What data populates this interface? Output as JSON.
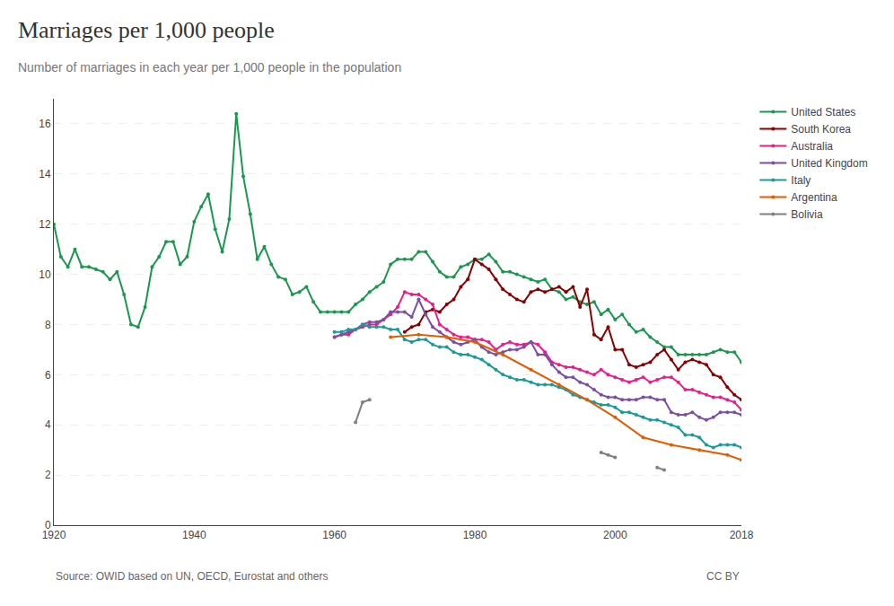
{
  "chart_data": {
    "type": "line",
    "title": "Marriages per 1,000 people",
    "subtitle": "Number of marriages in each year per 1,000 people in the population",
    "annotations": [
      "Source: OWID based on UN, OECD, Eurostat and others",
      "CC BY"
    ],
    "xlim": [
      1920,
      2018
    ],
    "ylim": [
      0,
      17
    ],
    "xticks": [
      1920,
      1940,
      1960,
      1980,
      2000,
      2018
    ],
    "yticks": [
      0,
      2,
      4,
      6,
      8,
      10,
      12,
      14,
      16
    ],
    "grid": "y",
    "marker": "circle",
    "line_style": "solid",
    "series": [
      {
        "name": "United States",
        "color": "#1a9850",
        "x": [
          1920,
          1921,
          1922,
          1923,
          1924,
          1925,
          1926,
          1927,
          1928,
          1929,
          1930,
          1931,
          1932,
          1933,
          1934,
          1935,
          1936,
          1937,
          1938,
          1939,
          1940,
          1941,
          1942,
          1943,
          1944,
          1945,
          1946,
          1947,
          1948,
          1949,
          1950,
          1951,
          1952,
          1953,
          1954,
          1955,
          1956,
          1957,
          1958,
          1959,
          1960,
          1961,
          1962,
          1963,
          1964,
          1965,
          1966,
          1967,
          1968,
          1969,
          1970,
          1971,
          1972,
          1973,
          1974,
          1975,
          1976,
          1977,
          1978,
          1979,
          1980,
          1981,
          1982,
          1983,
          1984,
          1985,
          1986,
          1987,
          1988,
          1989,
          1990,
          1991,
          1992,
          1993,
          1994,
          1995,
          1996,
          1997,
          1998,
          1999,
          2000,
          2001,
          2002,
          2003,
          2004,
          2005,
          2006,
          2007,
          2008,
          2009,
          2010,
          2011,
          2012,
          2013,
          2014,
          2015,
          2016,
          2017,
          2018
        ],
        "values": [
          12.0,
          10.7,
          10.3,
          11.0,
          10.3,
          10.3,
          10.2,
          10.1,
          9.8,
          10.1,
          9.2,
          8.0,
          7.9,
          8.7,
          10.3,
          10.7,
          11.3,
          11.3,
          10.4,
          10.7,
          12.1,
          12.7,
          13.2,
          11.8,
          10.9,
          12.2,
          16.4,
          13.9,
          12.4,
          10.6,
          11.1,
          10.4,
          9.9,
          9.8,
          9.2,
          9.3,
          9.5,
          8.9,
          8.5,
          8.5,
          8.5,
          8.5,
          8.5,
          8.8,
          9.0,
          9.3,
          9.5,
          9.7,
          10.4,
          10.6,
          10.6,
          10.6,
          10.9,
          10.9,
          10.5,
          10.1,
          9.9,
          9.9,
          10.3,
          10.4,
          10.6,
          10.6,
          10.8,
          10.5,
          10.1,
          10.1,
          10.0,
          9.9,
          9.8,
          9.7,
          9.8,
          9.4,
          9.3,
          9.0,
          9.1,
          8.9,
          8.8,
          8.9,
          8.4,
          8.6,
          8.2,
          8.4,
          8.0,
          7.7,
          7.8,
          7.5,
          7.3,
          7.1,
          7.1,
          6.8,
          6.8,
          6.8,
          6.8,
          6.8,
          6.9,
          7.0,
          6.9,
          6.9,
          6.5
        ]
      },
      {
        "name": "South Korea",
        "color": "#8b0000",
        "x": [
          1970,
          1971,
          1972,
          1973,
          1974,
          1975,
          1976,
          1977,
          1978,
          1979,
          1980,
          1981,
          1982,
          1983,
          1984,
          1985,
          1986,
          1987,
          1988,
          1989,
          1990,
          1991,
          1992,
          1993,
          1994,
          1995,
          1996,
          1997,
          1998,
          1999,
          2000,
          2001,
          2002,
          2003,
          2004,
          2005,
          2006,
          2007,
          2008,
          2009,
          2010,
          2011,
          2012,
          2013,
          2014,
          2015,
          2016,
          2017,
          2018
        ],
        "values": [
          7.7,
          7.9,
          8.0,
          8.5,
          8.6,
          8.5,
          8.8,
          9.0,
          9.5,
          9.8,
          10.6,
          10.4,
          10.2,
          9.8,
          9.4,
          9.2,
          9.0,
          8.9,
          9.3,
          9.4,
          9.3,
          9.4,
          9.5,
          9.3,
          9.5,
          8.7,
          9.4,
          7.6,
          7.4,
          7.9,
          7.0,
          7.0,
          6.4,
          6.3,
          6.4,
          6.5,
          6.8,
          7.0,
          6.6,
          6.2,
          6.5,
          6.6,
          6.5,
          6.4,
          6.0,
          5.9,
          5.5,
          5.2,
          5.0
        ]
      },
      {
        "name": "Australia",
        "color": "#e91e8c",
        "x": [
          1960,
          1961,
          1962,
          1963,
          1964,
          1965,
          1966,
          1967,
          1968,
          1969,
          1970,
          1971,
          1972,
          1973,
          1974,
          1975,
          1976,
          1977,
          1978,
          1979,
          1980,
          1981,
          1982,
          1983,
          1984,
          1985,
          1986,
          1987,
          1988,
          1989,
          1990,
          1991,
          1992,
          1993,
          1994,
          1995,
          1996,
          1997,
          1998,
          1999,
          2000,
          2001,
          2002,
          2003,
          2004,
          2005,
          2006,
          2007,
          2008,
          2009,
          2010,
          2011,
          2012,
          2013,
          2014,
          2015,
          2016,
          2017,
          2018
        ],
        "values": [
          7.5,
          7.6,
          7.6,
          7.8,
          7.9,
          8.0,
          8.0,
          8.2,
          8.4,
          8.7,
          9.3,
          9.2,
          9.2,
          9.0,
          8.8,
          8.0,
          7.8,
          7.6,
          7.5,
          7.5,
          7.4,
          7.4,
          7.3,
          7.0,
          7.2,
          7.3,
          7.2,
          7.2,
          7.3,
          7.2,
          6.9,
          6.5,
          6.4,
          6.3,
          6.3,
          6.2,
          6.1,
          6.0,
          6.2,
          6.0,
          5.9,
          5.8,
          5.7,
          5.8,
          5.9,
          5.7,
          5.8,
          5.9,
          5.9,
          5.7,
          5.4,
          5.4,
          5.3,
          5.2,
          5.1,
          5.1,
          5.0,
          4.9,
          4.6
        ]
      },
      {
        "name": "United Kingdom",
        "color": "#7b4fa6",
        "x": [
          1960,
          1961,
          1962,
          1963,
          1964,
          1965,
          1966,
          1967,
          1968,
          1969,
          1970,
          1971,
          1972,
          1973,
          1974,
          1975,
          1976,
          1977,
          1978,
          1979,
          1980,
          1981,
          1982,
          1983,
          1984,
          1985,
          1986,
          1987,
          1988,
          1989,
          1990,
          1991,
          1992,
          1993,
          1994,
          1995,
          1996,
          1997,
          1998,
          1999,
          2000,
          2001,
          2002,
          2003,
          2004,
          2005,
          2006,
          2007,
          2008,
          2009,
          2010,
          2011,
          2012,
          2013,
          2014,
          2015,
          2016,
          2017,
          2018
        ],
        "values": [
          7.5,
          7.6,
          7.7,
          7.8,
          8.0,
          8.1,
          8.1,
          8.2,
          8.5,
          8.5,
          8.5,
          8.3,
          9.0,
          8.4,
          7.9,
          7.7,
          7.5,
          7.3,
          7.2,
          7.3,
          7.4,
          7.1,
          6.9,
          6.8,
          6.9,
          7.0,
          7.0,
          7.1,
          7.3,
          6.8,
          6.8,
          6.4,
          6.1,
          5.9,
          5.9,
          5.7,
          5.6,
          5.4,
          5.2,
          5.1,
          5.1,
          5.0,
          5.0,
          5.0,
          5.1,
          5.1,
          5.0,
          5.0,
          4.5,
          4.4,
          4.4,
          4.5,
          4.3,
          4.2,
          4.3,
          4.5,
          4.5,
          4.5,
          4.4
        ]
      },
      {
        "name": "Italy",
        "color": "#1a9b9b",
        "x": [
          1960,
          1961,
          1962,
          1963,
          1964,
          1965,
          1966,
          1967,
          1968,
          1969,
          1970,
          1971,
          1972,
          1973,
          1974,
          1975,
          1976,
          1977,
          1978,
          1979,
          1980,
          1981,
          1982,
          1983,
          1984,
          1985,
          1986,
          1987,
          1988,
          1989,
          1990,
          1991,
          1992,
          1993,
          1994,
          1995,
          1996,
          1997,
          1998,
          1999,
          2000,
          2001,
          2002,
          2003,
          2004,
          2005,
          2006,
          2007,
          2008,
          2009,
          2010,
          2011,
          2012,
          2013,
          2014,
          2015,
          2016,
          2017,
          2018
        ],
        "values": [
          7.7,
          7.7,
          7.8,
          7.8,
          8.0,
          7.9,
          7.9,
          7.9,
          7.8,
          7.8,
          7.4,
          7.3,
          7.4,
          7.4,
          7.2,
          7.1,
          7.1,
          6.9,
          6.8,
          6.8,
          6.7,
          6.6,
          6.4,
          6.2,
          6.0,
          5.9,
          5.8,
          5.8,
          5.7,
          5.6,
          5.6,
          5.6,
          5.5,
          5.4,
          5.2,
          5.1,
          5.0,
          4.9,
          4.8,
          4.8,
          4.7,
          4.5,
          4.5,
          4.4,
          4.3,
          4.2,
          4.2,
          4.1,
          4.0,
          3.9,
          3.6,
          3.6,
          3.5,
          3.2,
          3.1,
          3.2,
          3.2,
          3.2,
          3.1
        ]
      },
      {
        "name": "Argentina",
        "color": "#e05e00",
        "x": [
          1968,
          1972,
          1976,
          1980,
          1984,
          1988,
          1992,
          1996,
          2000,
          2004,
          2008,
          2012,
          2016,
          2018
        ],
        "values": [
          7.5,
          7.6,
          7.5,
          7.3,
          6.8,
          6.2,
          5.6,
          5.0,
          4.3,
          3.5,
          3.2,
          3.0,
          2.8,
          2.6
        ]
      },
      {
        "name": "Bolivia",
        "color": "#808080",
        "x": [
          1963,
          1964,
          1965,
          1966,
          1998,
          1999,
          2000,
          2001,
          2006,
          2007
        ],
        "values": [
          4.1,
          4.9,
          5.0,
          null,
          2.9,
          2.8,
          2.7,
          null,
          2.3,
          2.2
        ]
      }
    ]
  }
}
